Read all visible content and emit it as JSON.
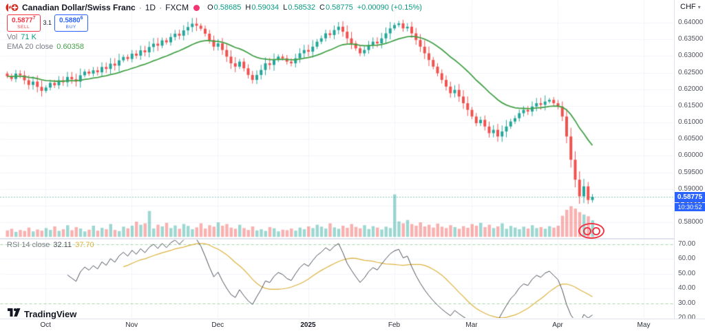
{
  "header": {
    "symbol_title": "Canadian Dollar/Swiss Franc",
    "sep": "·",
    "timeframe": "1D",
    "exchange": "FXCM",
    "ohlc": {
      "o_label": "O",
      "o": "0.58685",
      "h_label": "H",
      "h": "0.59034",
      "l_label": "L",
      "l": "0.58532",
      "c_label": "C",
      "c": "0.58775",
      "change": "+0.00090 (+0.15%)"
    }
  },
  "trade_panel": {
    "sell_price": "0.5877",
    "sell_sup": "7",
    "sell_label": "SELL",
    "spread": "3.1",
    "buy_price": "0.5880",
    "buy_sup": "6",
    "buy_label": "BUY"
  },
  "indicators": {
    "volume": {
      "label": "Vol",
      "value": "71 K"
    },
    "ema": {
      "label": "EMA 20 close",
      "value": "0.60358"
    },
    "rsi": {
      "label": "RSI 14 close",
      "value": "32.11",
      "ma_value": "37.70"
    }
  },
  "price_axis": {
    "currency": "CHF",
    "caret": "▾",
    "ticks": [
      "0.64000",
      "0.63500",
      "0.63000",
      "0.62500",
      "0.62000",
      "0.61500",
      "0.61000",
      "0.60500",
      "0.60000",
      "0.59500",
      "0.59000",
      "0.58500",
      "0.58000"
    ],
    "last_price": "0.58775",
    "countdown": "10:30:52"
  },
  "rsi_axis": {
    "ticks": [
      "70.00",
      "60.00",
      "50.00",
      "40.00",
      "30.00",
      "20.00"
    ]
  },
  "footer": {
    "logo_text": "TradingView"
  },
  "colors": {
    "up": "#26a69a",
    "down": "#ef5350",
    "up_text": "#089981",
    "down_text": "#f23645",
    "vol_up": "rgba(38,166,154,0.45)",
    "vol_down": "rgba(239,83,80,0.45)",
    "ema": "#43a047",
    "rsi": "#4a4e59",
    "rsi_ma": "#dcb13c",
    "band": "rgba(76,175,80,0.5)",
    "grid": "#f0f3fa",
    "badge": "#2962ff",
    "axis_text": "#50535e"
  },
  "chart_data": {
    "type": "candlestick",
    "symbol": "CAD/CHF",
    "timeframe": "1D",
    "exchange": "FXCM",
    "price_axis_range": [
      0.58,
      0.64
    ],
    "rsi_axis_range": [
      20,
      70
    ],
    "rsi_bands": [
      70,
      30
    ],
    "ema_period": 20,
    "rsi_period": 14,
    "last_ohlc": {
      "open": 0.58685,
      "high": 0.59034,
      "low": 0.58532,
      "close": 0.58775
    },
    "last_close": 0.58775,
    "first_open": 0.6248,
    "months": [
      {
        "label": "Oct",
        "index": 9
      },
      {
        "label": "Nov",
        "index": 29
      },
      {
        "label": "Dec",
        "index": 49
      },
      {
        "label": "2025",
        "index": 70,
        "bold": true
      },
      {
        "label": "Feb",
        "index": 90
      },
      {
        "label": "Mar",
        "index": 108
      },
      {
        "label": "Apr",
        "index": 128
      },
      {
        "label": "May",
        "index": 148
      }
    ],
    "closes": [
      0.624,
      0.6232,
      0.6248,
      0.6243,
      0.6228,
      0.6214,
      0.6224,
      0.6208,
      0.6196,
      0.6206,
      0.622,
      0.6213,
      0.6228,
      0.6222,
      0.6238,
      0.6231,
      0.6224,
      0.6243,
      0.6254,
      0.6248,
      0.6258,
      0.6252,
      0.6268,
      0.6262,
      0.6278,
      0.6272,
      0.6288,
      0.6298,
      0.6292,
      0.6308,
      0.6302,
      0.6318,
      0.6312,
      0.6328,
      0.6338,
      0.6332,
      0.6348,
      0.6342,
      0.6358,
      0.6368,
      0.6362,
      0.6378,
      0.6388,
      0.6398,
      0.6392,
      0.6383,
      0.6368,
      0.6349,
      0.6329,
      0.6339,
      0.6319,
      0.6299,
      0.6279,
      0.6269,
      0.6284,
      0.6264,
      0.6244,
      0.6229,
      0.6244,
      0.6259,
      0.6279,
      0.6274,
      0.6289,
      0.6299,
      0.6294,
      0.6284,
      0.6279,
      0.6294,
      0.6309,
      0.6319,
      0.6314,
      0.6329,
      0.6344,
      0.6354,
      0.6369,
      0.6364,
      0.6379,
      0.6389,
      0.6374,
      0.6354,
      0.6339,
      0.6324,
      0.6309,
      0.6319,
      0.6334,
      0.6344,
      0.6339,
      0.6354,
      0.6369,
      0.6384,
      0.6394,
      0.6399,
      0.6384,
      0.6389,
      0.6369,
      0.6349,
      0.6329,
      0.6309,
      0.6289,
      0.6269,
      0.6249,
      0.6229,
      0.6209,
      0.6189,
      0.6199,
      0.6179,
      0.6159,
      0.6139,
      0.6119,
      0.6099,
      0.6109,
      0.6089,
      0.6069,
      0.6079,
      0.6059,
      0.6074,
      0.6089,
      0.6104,
      0.6114,
      0.6129,
      0.6139,
      0.6134,
      0.6149,
      0.6159,
      0.6154,
      0.6164,
      0.6169,
      0.6159,
      0.6149,
      0.6119,
      0.6059,
      0.5989,
      0.5929,
      0.5879,
      0.5909,
      0.5868,
      0.58775
    ],
    "volumes_k": [
      28,
      35,
      22,
      30,
      26,
      40,
      24,
      32,
      27,
      38,
      30,
      45,
      26,
      33,
      50,
      29,
      42,
      36,
      24,
      31,
      48,
      27,
      39,
      33,
      55,
      30,
      25,
      44,
      37,
      48,
      65,
      52,
      58,
      110,
      36,
      52,
      45,
      60,
      38,
      49,
      35,
      55,
      47,
      33,
      41,
      58,
      36,
      50,
      44,
      62,
      48,
      55,
      40,
      35,
      52,
      38,
      30,
      45,
      28,
      33,
      26,
      42,
      37,
      24,
      31,
      29,
      36,
      27,
      40,
      33,
      45,
      38,
      52,
      44,
      36,
      58,
      41,
      35,
      48,
      39,
      55,
      43,
      37,
      50,
      34,
      46,
      40,
      32,
      44,
      38,
      180,
      66,
      58,
      72,
      55,
      48,
      62,
      45,
      52,
      40,
      57,
      44,
      38,
      50,
      42,
      35,
      46,
      39,
      55,
      48,
      60,
      42,
      52,
      38,
      45,
      58,
      35,
      47,
      40,
      33,
      44,
      36,
      50,
      38,
      42,
      35,
      46,
      40,
      48,
      90,
      115,
      130,
      120,
      105,
      95,
      88,
      71
    ]
  }
}
